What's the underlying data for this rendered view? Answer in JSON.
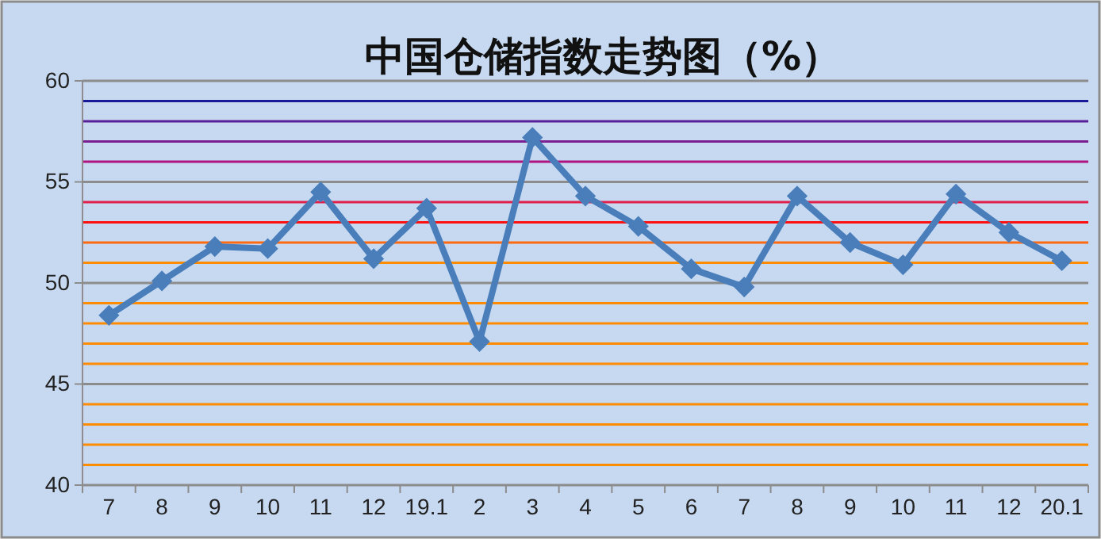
{
  "chart_data": {
    "type": "line",
    "title": "中国仓储指数走势图（%）",
    "categories": [
      "7",
      "8",
      "9",
      "10",
      "11",
      "12",
      "19.1",
      "2",
      "3",
      "4",
      "5",
      "6",
      "7",
      "8",
      "9",
      "10",
      "11",
      "12",
      "20.1"
    ],
    "series": [
      {
        "color": "#4a7ebb",
        "values": [
          48.4,
          50.1,
          51.8,
          51.7,
          54.5,
          51.2,
          53.7,
          47.1,
          57.2,
          54.3,
          52.8,
          50.7,
          49.8,
          54.3,
          52.0,
          50.9,
          54.4,
          52.5,
          51.1
        ]
      }
    ],
    "ylim": [
      40,
      60
    ],
    "yticks": [
      40,
      45,
      50,
      55,
      60
    ],
    "grid": "y",
    "marker": "diamond",
    "line_style": "solid",
    "ref_lines": [
      {
        "axis": "y",
        "value": 41,
        "color": "#ff8c00"
      },
      {
        "axis": "y",
        "value": 42,
        "color": "#ff8c00"
      },
      {
        "axis": "y",
        "value": 43,
        "color": "#ff8c00"
      },
      {
        "axis": "y",
        "value": 44,
        "color": "#ff8c00"
      },
      {
        "axis": "y",
        "value": 46,
        "color": "#ff8c00"
      },
      {
        "axis": "y",
        "value": 47,
        "color": "#ff8c00"
      },
      {
        "axis": "y",
        "value": 48,
        "color": "#ff8c00"
      },
      {
        "axis": "y",
        "value": 49,
        "color": "#ff8c00"
      },
      {
        "axis": "y",
        "value": 51,
        "color": "#ff8c00"
      },
      {
        "axis": "y",
        "value": 52,
        "color": "#ff6a10"
      },
      {
        "axis": "y",
        "value": 53,
        "color": "#ff1010"
      },
      {
        "axis": "y",
        "value": 54,
        "color": "#e0204a"
      },
      {
        "axis": "y",
        "value": 56,
        "color": "#b01480"
      },
      {
        "axis": "y",
        "value": 57,
        "color": "#7a1f8f"
      },
      {
        "axis": "y",
        "value": 58,
        "color": "#5a1f99"
      },
      {
        "axis": "y",
        "value": 59,
        "color": "#1a1a99"
      }
    ]
  }
}
